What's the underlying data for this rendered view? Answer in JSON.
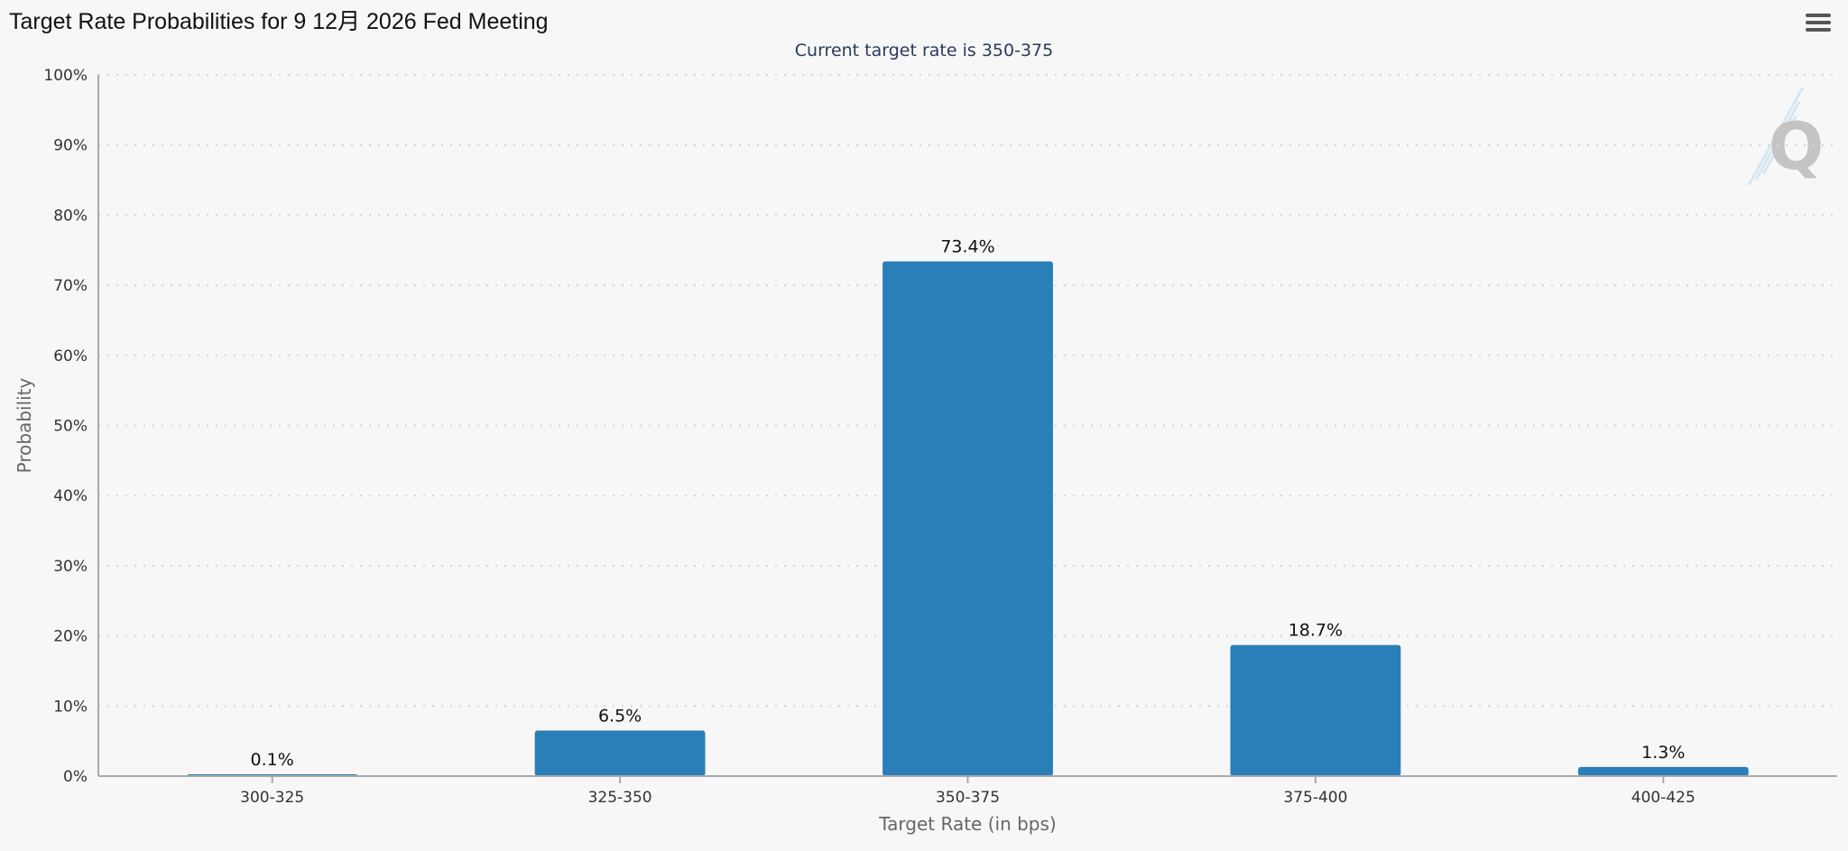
{
  "header": {
    "title": "Target Rate Probabilities for 9 12月 2026 Fed Meeting",
    "menu_icon": "hamburger-menu-icon"
  },
  "watermark": {
    "icon": "quikstrike-q-logo-icon",
    "text": "Q"
  },
  "chart_data": {
    "type": "bar",
    "title": "Target Rate Probabilities for 9 12月 2026 Fed Meeting",
    "subtitle": "Current target rate is 350-375",
    "categories": [
      "300-325",
      "325-350",
      "350-375",
      "375-400",
      "400-425"
    ],
    "values": [
      0.1,
      6.5,
      73.4,
      18.7,
      1.3
    ],
    "data_labels": [
      "0.1%",
      "6.5%",
      "73.4%",
      "18.7%",
      "1.3%"
    ],
    "xlabel": "Target Rate (in bps)",
    "ylabel": "Probability",
    "ylim": [
      0,
      100
    ],
    "yticks": [
      "0%",
      "10%",
      "20%",
      "30%",
      "40%",
      "50%",
      "60%",
      "70%",
      "80%",
      "90%",
      "100%"
    ],
    "grid": true,
    "legend": "none",
    "colors": {
      "bar": "#2a7fb8",
      "grid": "#d4d4d4",
      "axis": "#aaaaaa"
    }
  }
}
